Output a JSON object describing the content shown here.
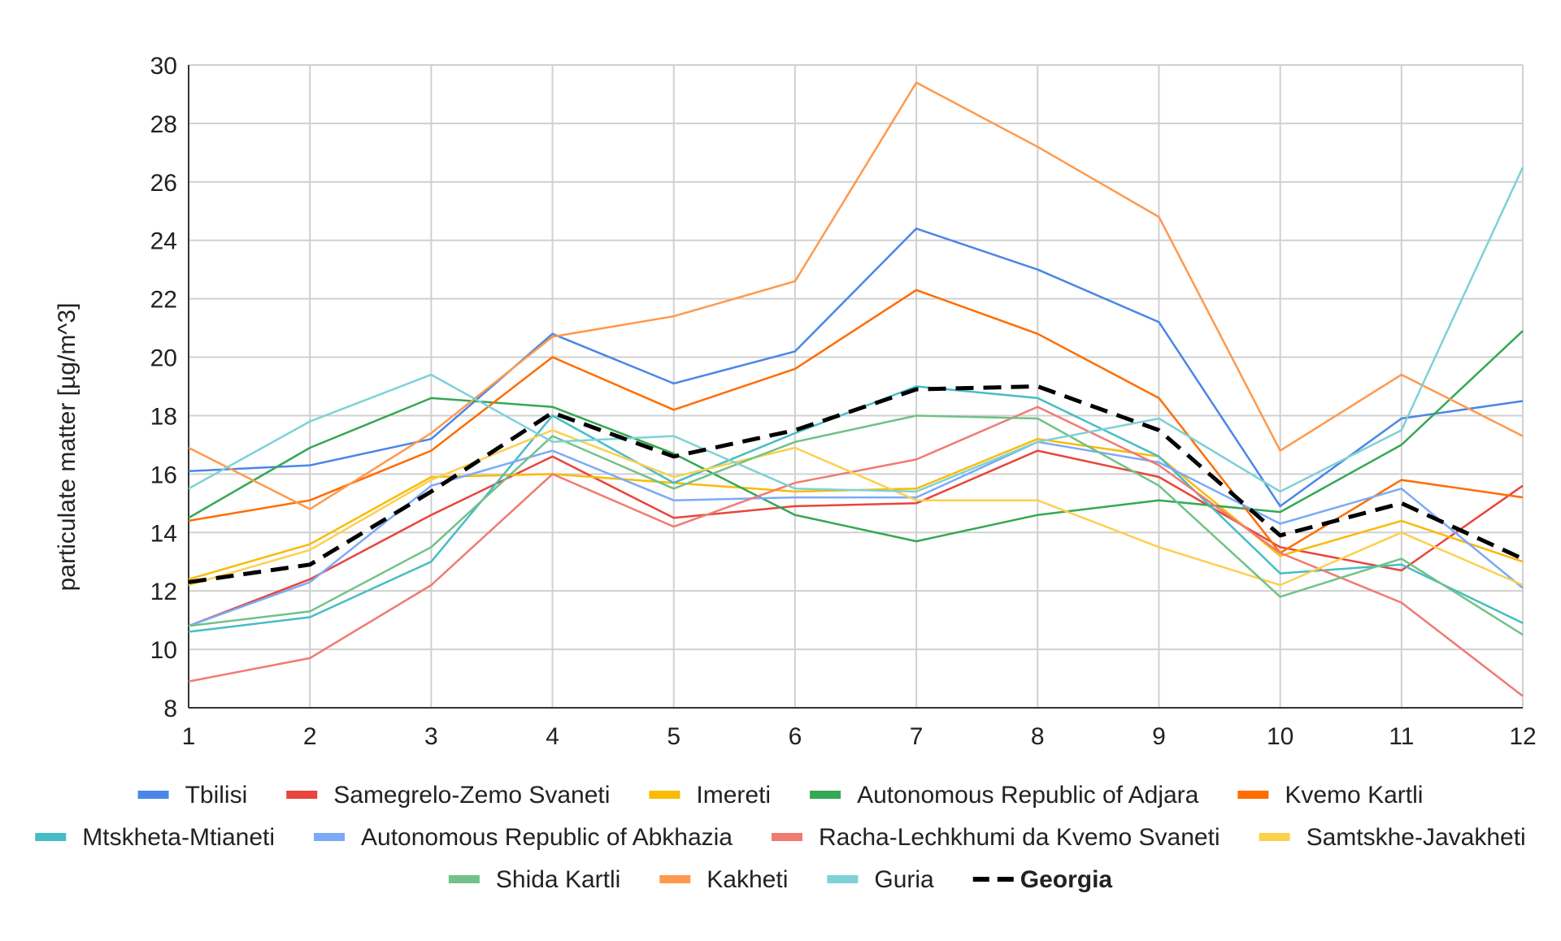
{
  "chart_data": {
    "type": "line",
    "title": "",
    "xlabel": "",
    "ylabel": "particulate matter [µg/m^3]",
    "x": [
      1,
      2,
      3,
      4,
      5,
      6,
      7,
      8,
      9,
      10,
      11,
      12
    ],
    "xlim": [
      1,
      12
    ],
    "ylim": [
      8,
      30
    ],
    "yticks": [
      8,
      10,
      12,
      14,
      16,
      18,
      20,
      22,
      24,
      26,
      28,
      30
    ],
    "grid": true,
    "legend_position": "bottom",
    "series": [
      {
        "name": "Tbilisi",
        "color": "#4a86e8",
        "dashed": false,
        "bold": false,
        "values": [
          16.1,
          16.3,
          17.2,
          20.8,
          19.1,
          20.2,
          24.4,
          23.0,
          21.2,
          14.9,
          17.9,
          18.5
        ]
      },
      {
        "name": "Samegrelo-Zemo Svaneti",
        "color": "#e8453c",
        "dashed": false,
        "bold": false,
        "values": [
          10.8,
          12.4,
          14.6,
          16.6,
          14.5,
          14.9,
          15.0,
          16.8,
          15.9,
          13.5,
          12.7,
          15.6
        ]
      },
      {
        "name": "Imereti",
        "color": "#f9bb06",
        "dashed": false,
        "bold": false,
        "values": [
          12.4,
          13.6,
          15.9,
          16.0,
          15.7,
          15.4,
          15.5,
          17.2,
          16.6,
          13.2,
          14.4,
          13.0
        ]
      },
      {
        "name": "Autonomous Republic of Adjara",
        "color": "#34a853",
        "dashed": false,
        "bold": false,
        "values": [
          14.5,
          16.9,
          18.6,
          18.3,
          16.7,
          14.6,
          13.7,
          14.6,
          15.1,
          14.7,
          17.0,
          20.9
        ]
      },
      {
        "name": "Kvemo Kartli",
        "color": "#ff6d00",
        "dashed": false,
        "bold": false,
        "values": [
          14.4,
          15.1,
          16.8,
          20.0,
          18.2,
          19.6,
          22.3,
          20.8,
          18.6,
          13.3,
          15.8,
          15.2
        ]
      },
      {
        "name": "Mtskheta-Mtianeti",
        "color": "#46bdc6",
        "dashed": false,
        "bold": false,
        "values": [
          10.6,
          11.1,
          13.0,
          18.0,
          15.7,
          17.4,
          19.0,
          18.6,
          16.6,
          12.6,
          12.9,
          10.9
        ]
      },
      {
        "name": "Autonomous Republic of Abkhazia",
        "color": "#7baaf7",
        "dashed": false,
        "bold": false,
        "values": [
          10.8,
          12.3,
          15.6,
          16.8,
          15.1,
          15.2,
          15.2,
          17.1,
          16.4,
          14.3,
          15.5,
          12.1
        ]
      },
      {
        "name": "Racha-Lechkhumi da Kvemo Svaneti",
        "color": "#f07b72",
        "dashed": false,
        "bold": false,
        "values": [
          8.9,
          9.7,
          12.2,
          16.0,
          14.2,
          15.7,
          16.5,
          18.3,
          16.3,
          13.3,
          11.6,
          8.4
        ]
      },
      {
        "name": "Samtskhe-Javakheti",
        "color": "#fcd04f",
        "dashed": false,
        "bold": false,
        "values": [
          12.2,
          13.4,
          15.8,
          17.5,
          15.9,
          16.9,
          15.1,
          15.1,
          13.5,
          12.2,
          14.0,
          12.2
        ]
      },
      {
        "name": "Shida Kartli",
        "color": "#71c287",
        "dashed": false,
        "bold": false,
        "values": [
          10.8,
          11.3,
          13.5,
          17.3,
          15.5,
          17.1,
          18.0,
          17.9,
          15.6,
          11.8,
          13.1,
          10.5
        ]
      },
      {
        "name": "Kakheti",
        "color": "#ff994d",
        "dashed": false,
        "bold": false,
        "values": [
          16.9,
          14.8,
          17.4,
          20.7,
          21.4,
          22.6,
          29.4,
          27.2,
          24.8,
          16.8,
          19.4,
          17.3
        ]
      },
      {
        "name": "Guria",
        "color": "#7ed1d7",
        "dashed": false,
        "bold": false,
        "values": [
          15.5,
          17.8,
          19.4,
          17.1,
          17.3,
          15.5,
          15.4,
          17.1,
          17.9,
          15.4,
          17.5,
          26.5
        ]
      },
      {
        "name": "Georgia",
        "color": "#000000",
        "dashed": true,
        "bold": true,
        "values": [
          12.3,
          12.9,
          15.4,
          18.1,
          16.6,
          17.5,
          18.9,
          19.0,
          17.5,
          13.9,
          15.0,
          13.1
        ]
      }
    ]
  }
}
